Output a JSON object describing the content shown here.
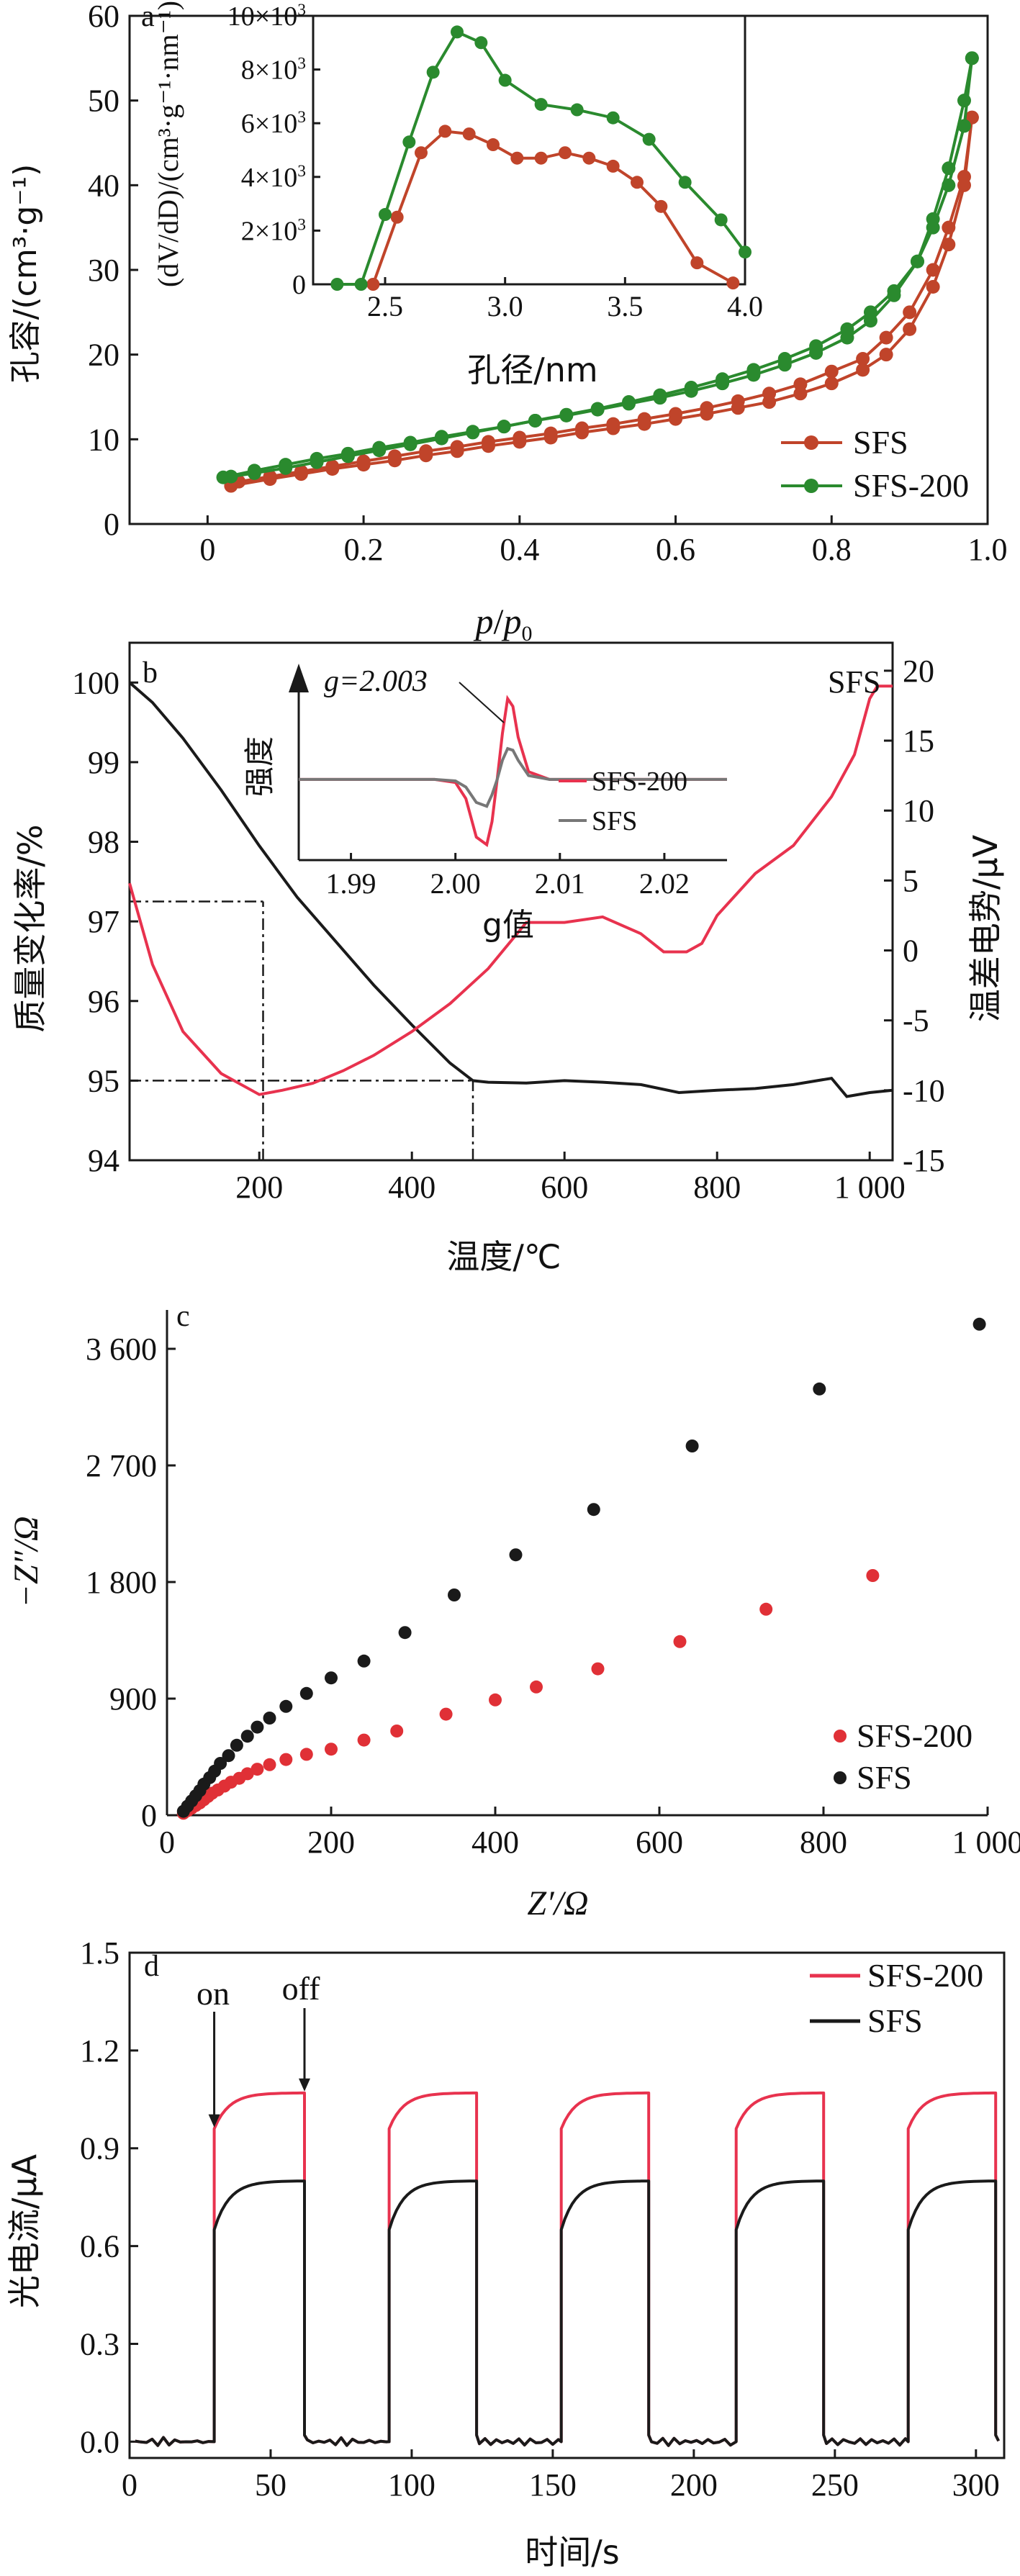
{
  "colors": {
    "sfs_a": "#c0442a",
    "sfs200_a": "#2a8a2e",
    "sfs200_red": "#e8324e",
    "black": "#1a1a1a",
    "gray": "#777777",
    "c_red": "#e03036"
  },
  "panels": {
    "a": {
      "letter": "a",
      "xlabel_p": "p",
      "xlabel_slash": "/",
      "xlabel_p0": "p",
      "xlabel_sub": "0",
      "ylabel": "孔容/(cm³·g⁻¹)",
      "inset_xlabel": "孔径/nm",
      "inset_ylabel": "(dV/dD)/(cm³·g⁻¹·nm⁻¹)",
      "legend": [
        "SFS",
        "SFS-200"
      ]
    },
    "b": {
      "letter": "b",
      "xlabel": "温度/℃",
      "ylabel_left": "质量变化率/%",
      "ylabel_right": "温差电势/μV",
      "curve_label": "SFS",
      "inset_ylabel": "强度",
      "inset_xlabel": "g值",
      "inset_annotation": "g=2.003",
      "inset_legend": [
        "SFS-200",
        "SFS"
      ]
    },
    "c": {
      "letter": "c",
      "xlabel": "Z′/Ω",
      "ylabel": "−Z″/Ω",
      "legend": [
        "SFS-200",
        "SFS"
      ]
    },
    "d": {
      "letter": "d",
      "xlabel": "时间/s",
      "ylabel": "光电流/μA",
      "on_label": "on",
      "off_label": "off",
      "legend": [
        "SFS-200",
        "SFS"
      ]
    }
  },
  "chart_data": [
    {
      "id": "a",
      "type": "line",
      "xlim": [
        -0.1,
        1.0
      ],
      "ylim": [
        0,
        60
      ],
      "xticks": [
        "0",
        "0.2",
        "0.4",
        "0.6",
        "0.8",
        "1.0"
      ],
      "xtick_values": [
        0,
        0.2,
        0.4,
        0.6,
        0.8,
        1.0
      ],
      "yticks": [
        "0",
        "10",
        "20",
        "30",
        "40",
        "50",
        "60"
      ],
      "ytick_values": [
        0,
        10,
        20,
        30,
        40,
        50,
        60
      ],
      "legend_position": "right",
      "series": [
        {
          "name": "SFS",
          "color": "sfs_a",
          "adsorption": {
            "x": [
              0.03,
              0.08,
              0.12,
              0.16,
              0.2,
              0.24,
              0.28,
              0.32,
              0.36,
              0.4,
              0.44,
              0.48,
              0.52,
              0.56,
              0.6,
              0.64,
              0.68,
              0.72,
              0.76,
              0.8,
              0.84,
              0.87,
              0.9,
              0.93,
              0.95,
              0.97,
              0.98
            ],
            "y": [
              4.5,
              5.3,
              5.9,
              6.5,
              7.0,
              7.5,
              8.1,
              8.6,
              9.2,
              9.7,
              10.2,
              10.8,
              11.3,
              11.8,
              12.4,
              13.0,
              13.7,
              14.4,
              15.4,
              16.6,
              18.2,
              20.0,
              23.0,
              28.0,
              33.0,
              40.0,
              48.0
            ]
          },
          "desorption": {
            "x": [
              0.98,
              0.97,
              0.95,
              0.93,
              0.9,
              0.87,
              0.84,
              0.8,
              0.76,
              0.72,
              0.68,
              0.64,
              0.6,
              0.56,
              0.52,
              0.48,
              0.44,
              0.4,
              0.36,
              0.32,
              0.28,
              0.24,
              0.2,
              0.16,
              0.12,
              0.08,
              0.04
            ],
            "y": [
              48.0,
              41.0,
              35.0,
              30.0,
              25.0,
              22.0,
              19.5,
              18.0,
              16.5,
              15.4,
              14.5,
              13.7,
              13.0,
              12.4,
              11.8,
              11.3,
              10.7,
              10.2,
              9.7,
              9.1,
              8.6,
              8.0,
              7.4,
              6.8,
              6.2,
              5.6,
              5.0
            ]
          }
        },
        {
          "name": "SFS-200",
          "color": "sfs200_a",
          "adsorption": {
            "x": [
              0.02,
              0.06,
              0.1,
              0.14,
              0.18,
              0.22,
              0.26,
              0.3,
              0.34,
              0.38,
              0.42,
              0.46,
              0.5,
              0.54,
              0.58,
              0.62,
              0.66,
              0.7,
              0.74,
              0.78,
              0.82,
              0.85,
              0.88,
              0.91,
              0.93,
              0.95,
              0.97,
              0.98
            ],
            "y": [
              5.5,
              6.3,
              7.0,
              7.7,
              8.3,
              9.0,
              9.6,
              10.3,
              10.9,
              11.5,
              12.2,
              12.8,
              13.5,
              14.2,
              14.9,
              15.7,
              16.6,
              17.6,
              18.8,
              20.2,
              22.0,
              24.0,
              27.0,
              31.0,
              36.0,
              42.0,
              50.0,
              55.0
            ]
          },
          "desorption": {
            "x": [
              0.98,
              0.97,
              0.95,
              0.93,
              0.91,
              0.88,
              0.85,
              0.82,
              0.78,
              0.74,
              0.7,
              0.66,
              0.62,
              0.58,
              0.54,
              0.5,
              0.46,
              0.42,
              0.38,
              0.34,
              0.3,
              0.26,
              0.22,
              0.18,
              0.14,
              0.1,
              0.06,
              0.03
            ],
            "y": [
              55.0,
              47.0,
              40.0,
              35.0,
              31.0,
              27.5,
              25.0,
              23.0,
              21.0,
              19.5,
              18.2,
              17.1,
              16.1,
              15.2,
              14.4,
              13.6,
              12.9,
              12.2,
              11.5,
              10.8,
              10.1,
              9.4,
              8.7,
              8.0,
              7.3,
              6.6,
              6.0,
              5.6
            ]
          }
        }
      ],
      "inset": {
        "xlim": [
          2.2,
          4.0
        ],
        "ylim": [
          0,
          10000
        ],
        "xticks": [
          "2.5",
          "3.0",
          "3.5",
          "4.0"
        ],
        "xtick_values": [
          2.5,
          3.0,
          3.5,
          4.0
        ],
        "ytick_values": [
          0,
          2000,
          4000,
          6000,
          8000,
          10000
        ],
        "ytick_labels": [
          {
            "m": "0",
            "e": ""
          },
          {
            "m": "2×10",
            "e": "3"
          },
          {
            "m": "4×10",
            "e": "3"
          },
          {
            "m": "6×10",
            "e": "3"
          },
          {
            "m": "8×10",
            "e": "3"
          },
          {
            "m": "10×10",
            "e": "3"
          }
        ],
        "series": [
          {
            "name": "SFS",
            "color": "sfs_a",
            "x": [
              2.45,
              2.55,
              2.65,
              2.75,
              2.85,
              2.95,
              3.05,
              3.15,
              3.25,
              3.35,
              3.45,
              3.55,
              3.65,
              3.8,
              3.95
            ],
            "y": [
              0,
              2500,
              4900,
              5700,
              5600,
              5200,
              4700,
              4700,
              4900,
              4700,
              4400,
              3800,
              2900,
              800,
              50
            ]
          },
          {
            "name": "SFS-200",
            "color": "sfs200_a",
            "x": [
              2.3,
              2.4,
              2.5,
              2.6,
              2.7,
              2.8,
              2.9,
              3.0,
              3.15,
              3.3,
              3.45,
              3.6,
              3.75,
              3.9,
              4.0
            ],
            "y": [
              0,
              0,
              2600,
              5300,
              7900,
              9400,
              9000,
              7600,
              6700,
              6500,
              6200,
              5400,
              3800,
              2400,
              1200
            ]
          }
        ]
      }
    },
    {
      "id": "b",
      "type": "line",
      "xlim": [
        30,
        1030
      ],
      "ylim_left": [
        94,
        100.5
      ],
      "ylim_right": [
        -15,
        22
      ],
      "xticks": [
        "200",
        "400",
        "600",
        "800",
        "1 000"
      ],
      "xtick_values": [
        200,
        400,
        600,
        800,
        1000
      ],
      "yticks_left": [
        "94",
        "95",
        "96",
        "97",
        "98",
        "99",
        "100"
      ],
      "ytick_values_left": [
        94,
        95,
        96,
        97,
        98,
        99,
        100
      ],
      "yticks_right": [
        "-15",
        "-10",
        "-5",
        "0",
        "5",
        "10",
        "15",
        "20"
      ],
      "ytick_values_right": [
        -15,
        -10,
        -5,
        0,
        5,
        10,
        15,
        20
      ],
      "series": [
        {
          "name": "质量变化率",
          "axis": "left",
          "color": "black",
          "x": [
            30,
            60,
            100,
            150,
            200,
            250,
            300,
            350,
            400,
            450,
            480,
            500,
            550,
            600,
            650,
            700,
            750,
            800,
            850,
            900,
            950,
            970,
            1000,
            1030
          ],
          "y": [
            100.0,
            99.75,
            99.3,
            98.65,
            97.95,
            97.3,
            96.75,
            96.2,
            95.7,
            95.22,
            95.0,
            94.98,
            94.97,
            95.0,
            94.98,
            94.95,
            94.85,
            94.88,
            94.9,
            94.95,
            95.03,
            94.8,
            94.85,
            94.88
          ]
        },
        {
          "name": "温差电势",
          "axis": "right",
          "color": "sfs200_red",
          "x": [
            30,
            60,
            100,
            150,
            200,
            230,
            270,
            310,
            350,
            400,
            450,
            500,
            550,
            600,
            650,
            700,
            730,
            760,
            780,
            800,
            850,
            900,
            950,
            980,
            1000,
            1010,
            1030
          ],
          "y": [
            4.8,
            -1.0,
            -5.8,
            -8.8,
            -10.3,
            -10.0,
            -9.5,
            -8.6,
            -7.5,
            -5.8,
            -3.8,
            -1.3,
            2.0,
            2.0,
            2.4,
            1.2,
            -0.1,
            -0.1,
            0.5,
            2.5,
            5.5,
            7.5,
            11.0,
            14.0,
            18.0,
            18.9,
            18.9
          ]
        }
      ],
      "reference_lines": [
        {
          "orientation": "h",
          "axis": "left",
          "y": 97.25,
          "x_from": 30,
          "x_to": 205
        },
        {
          "orientation": "v",
          "x": 205,
          "y_from": 94.0,
          "y_to": 97.25
        },
        {
          "orientation": "h",
          "axis": "left",
          "y": 95.0,
          "x_from": 30,
          "x_to": 480
        },
        {
          "orientation": "v",
          "x": 480,
          "y_from": 94.0,
          "y_to": 95.0
        }
      ],
      "inset": {
        "xlim": [
          1.985,
          2.026
        ],
        "xticks": [
          "1.99",
          "2.00",
          "2.01",
          "2.02"
        ],
        "xtick_values": [
          1.99,
          2.0,
          2.01,
          2.02
        ],
        "ylim": [
          -1.05,
          1.45
        ],
        "series": [
          {
            "name": "SFS-200",
            "color": "sfs200_red",
            "x": [
              1.985,
              1.998,
              2.0,
              2.001,
              2.002,
              2.003,
              2.0035,
              2.004,
              2.0045,
              2.005,
              2.0055,
              2.006,
              2.007,
              2.009,
              2.026
            ],
            "y": [
              0,
              0,
              -0.04,
              -0.25,
              -0.75,
              -0.85,
              -0.55,
              0.0,
              0.6,
              1.05,
              0.95,
              0.55,
              0.1,
              0.0,
              0
            ]
          },
          {
            "name": "SFS",
            "color": "gray",
            "x": [
              1.985,
              1.998,
              2.0,
              2.001,
              2.002,
              2.003,
              2.0035,
              2.004,
              2.0045,
              2.005,
              2.0055,
              2.006,
              2.007,
              2.009,
              2.026
            ],
            "y": [
              0,
              0,
              -0.02,
              -0.1,
              -0.3,
              -0.35,
              -0.2,
              0.0,
              0.25,
              0.4,
              0.38,
              0.25,
              0.05,
              0.0,
              0
            ]
          }
        ]
      }
    },
    {
      "id": "c",
      "type": "scatter",
      "xlim": [
        0,
        1000
      ],
      "ylim": [
        0,
        3900
      ],
      "xticks": [
        "0",
        "200",
        "400",
        "600",
        "800",
        "1 000"
      ],
      "xtick_values": [
        0,
        200,
        400,
        600,
        800,
        1000
      ],
      "yticks": [
        "0",
        "900",
        "1 800",
        "2 700",
        "3 600"
      ],
      "ytick_values": [
        0,
        900,
        1800,
        2700,
        3600
      ],
      "legend_position": "bottom-right",
      "series": [
        {
          "name": "SFS-200",
          "color": "c_red",
          "x": [
            20,
            25,
            30,
            35,
            40,
            45,
            50,
            55,
            62,
            70,
            78,
            88,
            98,
            110,
            125,
            145,
            170,
            200,
            240,
            280,
            340,
            400,
            450,
            525,
            625,
            730,
            860
          ],
          "y": [
            15,
            35,
            55,
            75,
            95,
            120,
            145,
            170,
            195,
            225,
            255,
            285,
            320,
            355,
            390,
            430,
            470,
            510,
            580,
            650,
            780,
            890,
            990,
            1130,
            1340,
            1590,
            1850
          ]
        },
        {
          "name": "SFS",
          "color": "black",
          "x": [
            20,
            25,
            30,
            35,
            40,
            45,
            52,
            58,
            65,
            75,
            85,
            98,
            110,
            125,
            145,
            170,
            200,
            240,
            290,
            350,
            425,
            520,
            640,
            795,
            990
          ],
          "y": [
            30,
            70,
            110,
            150,
            190,
            240,
            290,
            340,
            400,
            460,
            540,
            610,
            680,
            750,
            840,
            940,
            1060,
            1190,
            1410,
            1700,
            2010,
            2360,
            2850,
            3290,
            3790
          ]
        }
      ]
    },
    {
      "id": "d",
      "type": "line",
      "xlim": [
        0,
        310
      ],
      "ylim": [
        -0.05,
        1.5
      ],
      "xticks": [
        "0",
        "50",
        "100",
        "150",
        "200",
        "250",
        "300"
      ],
      "xtick_values": [
        0,
        50,
        100,
        150,
        200,
        250,
        300
      ],
      "yticks": [
        "0.0",
        "0.3",
        "0.6",
        "0.9",
        "1.2",
        "1.5"
      ],
      "ytick_values": [
        0.0,
        0.3,
        0.6,
        0.9,
        1.2,
        1.5
      ],
      "legend_position": "top-right",
      "light_on": [
        30,
        92,
        153,
        215,
        276
      ],
      "light_off": [
        62,
        123,
        184,
        246,
        307
      ],
      "series": [
        {
          "name": "SFS-200",
          "color": "sfs200_red",
          "on_level": 1.07,
          "on_start": 0.96,
          "off_level": 0.0
        },
        {
          "name": "SFS",
          "color": "black",
          "on_level": 0.8,
          "on_start": 0.65,
          "off_level": 0.0
        }
      ]
    }
  ]
}
